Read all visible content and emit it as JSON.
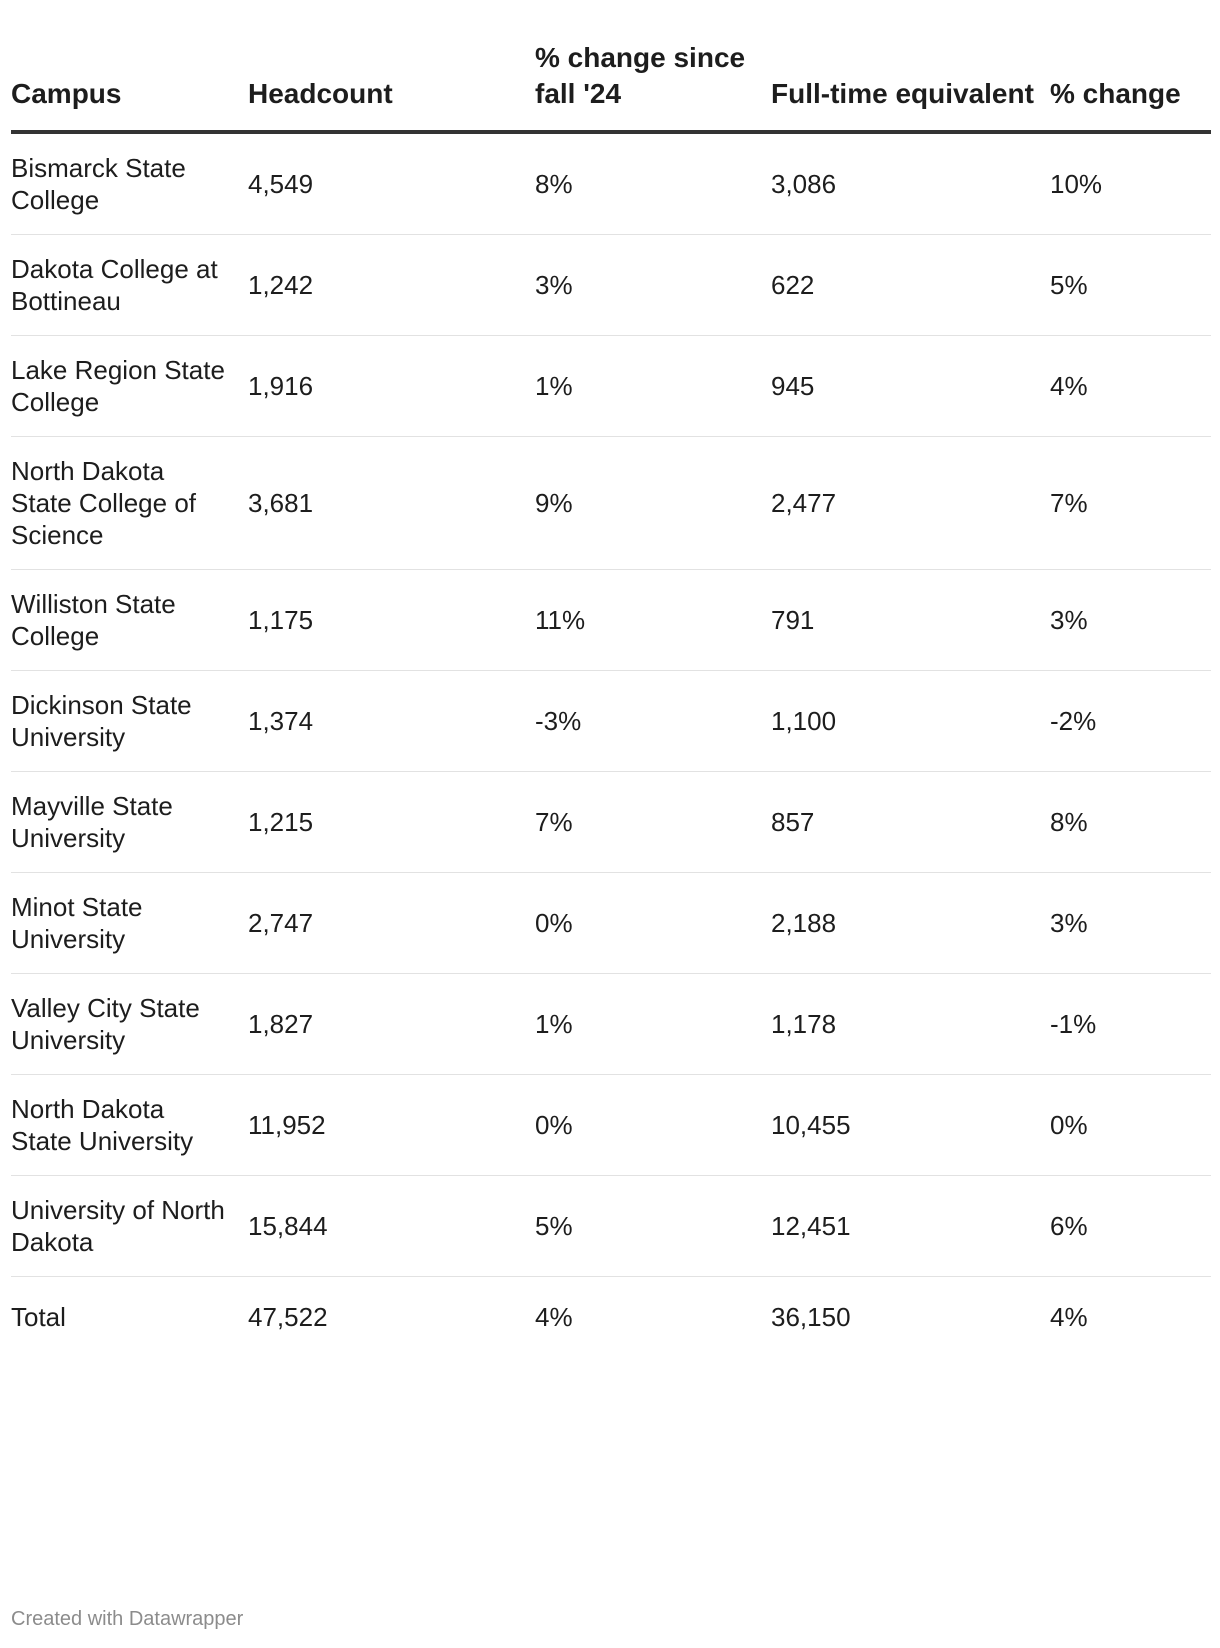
{
  "chart_data": {
    "type": "table",
    "columns": [
      "Campus",
      "Headcount",
      "% change since fall '24",
      "Full-time equivalent",
      "% change"
    ],
    "rows": [
      {
        "campus": "Bismarck State College",
        "headcount": "4,549",
        "headcount_change": "8%",
        "fte": "3,086",
        "fte_change": "10%"
      },
      {
        "campus": "Dakota College at Bottineau",
        "headcount": "1,242",
        "headcount_change": "3%",
        "fte": "622",
        "fte_change": "5%"
      },
      {
        "campus": "Lake Region State College",
        "headcount": "1,916",
        "headcount_change": "1%",
        "fte": "945",
        "fte_change": "4%"
      },
      {
        "campus": "North Dakota State College of Science",
        "headcount": "3,681",
        "headcount_change": "9%",
        "fte": "2,477",
        "fte_change": "7%"
      },
      {
        "campus": "Williston State College",
        "headcount": "1,175",
        "headcount_change": "11%",
        "fte": "791",
        "fte_change": "3%"
      },
      {
        "campus": "Dickinson State University",
        "headcount": "1,374",
        "headcount_change": "-3%",
        "fte": "1,100",
        "fte_change": "-2%"
      },
      {
        "campus": "Mayville State University",
        "headcount": "1,215",
        "headcount_change": "7%",
        "fte": "857",
        "fte_change": "8%"
      },
      {
        "campus": "Minot State University",
        "headcount": "2,747",
        "headcount_change": "0%",
        "fte": "2,188",
        "fte_change": "3%"
      },
      {
        "campus": "Valley City State University",
        "headcount": "1,827",
        "headcount_change": "1%",
        "fte": "1,178",
        "fte_change": "-1%"
      },
      {
        "campus": "North Dakota State University",
        "headcount": "11,952",
        "headcount_change": "0%",
        "fte": "10,455",
        "fte_change": "0%"
      },
      {
        "campus": "University of North Dakota",
        "headcount": "15,844",
        "headcount_change": "5%",
        "fte": "12,451",
        "fte_change": "6%"
      },
      {
        "campus": "Total",
        "headcount": "47,522",
        "headcount_change": "4%",
        "fte": "36,150",
        "fte_change": "4%"
      }
    ]
  },
  "footer": {
    "credit": "Created with Datawrapper"
  },
  "colors": {
    "text": "#1d1d1d",
    "header_rule": "#333333",
    "row_rule": "#e2e2e2",
    "footer_text": "#8c8c8c"
  }
}
